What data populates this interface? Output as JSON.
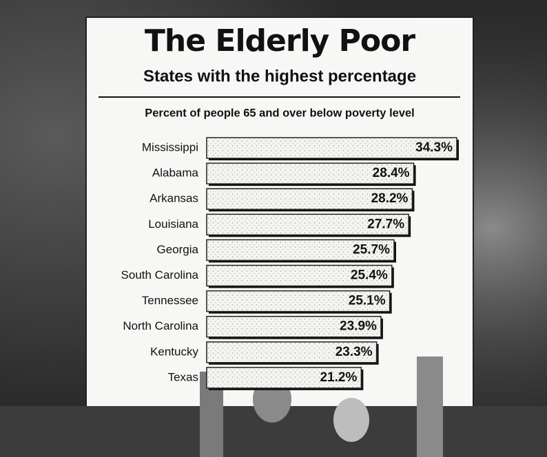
{
  "chart_data": {
    "type": "bar",
    "orientation": "horizontal",
    "title": "The Elderly Poor",
    "subtitle": "States with the highest percentage",
    "axis_label": "Percent of people 65 and over below poverty level",
    "categories": [
      "Mississippi",
      "Alabama",
      "Arkansas",
      "Louisiana",
      "Georgia",
      "South Carolina",
      "Tennessee",
      "North Carolina",
      "Kentucky",
      "Texas"
    ],
    "values": [
      34.3,
      28.4,
      28.2,
      27.7,
      25.7,
      25.4,
      25.1,
      23.9,
      23.3,
      21.2
    ],
    "value_labels": [
      "34.3%",
      "28.4%",
      "28.2%",
      "27.7%",
      "25.7%",
      "25.4%",
      "25.1%",
      "23.9%",
      "23.3%",
      "21.2%"
    ],
    "color": "#f1f1ee"
  }
}
